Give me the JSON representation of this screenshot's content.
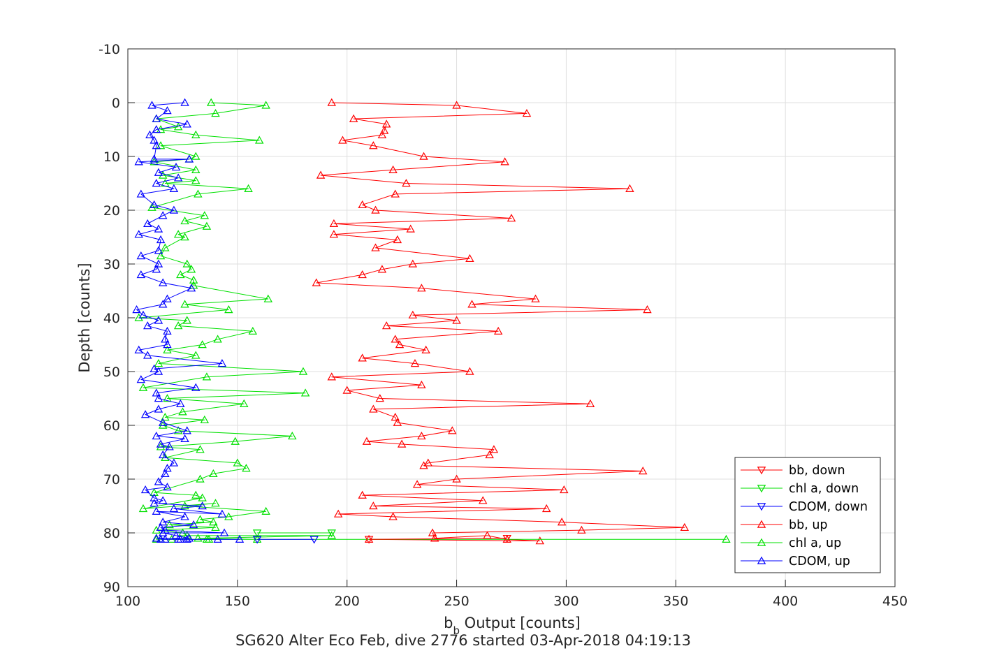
{
  "chart_data": {
    "type": "line",
    "title": "",
    "xlabel_main": "b",
    "xlabel_sub": "b",
    "xlabel_rest": " Output [counts]",
    "ylabel": "Depth [counts]",
    "footer": "SG620 Alter Eco Feb, dive 2776 started 03-Apr-2018 04:19:13",
    "xlim": [
      100,
      450
    ],
    "ylim": [
      -10,
      90
    ],
    "y_reversed": true,
    "grid": true,
    "legend_position": "bottom-right",
    "xticks": [
      "100",
      "150",
      "200",
      "250",
      "300",
      "350",
      "400",
      "450"
    ],
    "yticks": [
      "-10",
      "0",
      "10",
      "20",
      "30",
      "40",
      "50",
      "60",
      "70",
      "80",
      "90"
    ],
    "series": [
      {
        "name": "bb, down",
        "color": "#ff0000",
        "marker": "triangle-down",
        "x": [
          210,
          273
        ],
        "y": [
          81.2,
          81.0
        ]
      },
      {
        "name": "chl a, down",
        "color": "#00e000",
        "marker": "triangle-down",
        "x": [
          193,
          159
        ],
        "y": [
          80.0,
          80.0
        ]
      },
      {
        "name": "CDOM, down",
        "color": "#0000ff",
        "marker": "triangle-down",
        "x": [
          185,
          159
        ],
        "y": [
          81.2,
          81.2
        ]
      },
      {
        "name": "bb, up",
        "color": "#ff0000",
        "marker": "triangle-up",
        "x": [
          193,
          250,
          282,
          203,
          218,
          217,
          216,
          198,
          212,
          235,
          272,
          221,
          188,
          227,
          329,
          222,
          207,
          213,
          275,
          194,
          229,
          194,
          223,
          213,
          256,
          230,
          216,
          207,
          186,
          234,
          286,
          257,
          337,
          230,
          250,
          218,
          269,
          222,
          224,
          236,
          207,
          231,
          256,
          193,
          234,
          200,
          215,
          311,
          212,
          222,
          223,
          248,
          234,
          209,
          225,
          267,
          265,
          237,
          235,
          335,
          250,
          232,
          299,
          207,
          262,
          212,
          291,
          196,
          221,
          298,
          354,
          307,
          239,
          240,
          264,
          273,
          288,
          210
        ],
        "y": [
          0,
          0.5,
          2,
          3,
          4,
          5.2,
          6,
          7,
          8,
          10,
          11,
          12.5,
          13.5,
          15,
          16,
          17,
          19,
          20,
          21.5,
          22.5,
          23.5,
          24.5,
          25.5,
          27,
          29,
          30,
          31,
          32,
          33.5,
          34.5,
          36.5,
          37.5,
          38.5,
          39.5,
          40.5,
          41.5,
          42.5,
          44,
          45,
          46,
          47.5,
          48.5,
          50,
          51,
          52.5,
          53.5,
          55,
          56,
          57,
          58.5,
          59.5,
          61,
          62,
          63,
          63.5,
          64.5,
          65.5,
          67,
          67.5,
          68.5,
          70,
          71,
          72,
          73,
          74,
          75,
          75.5,
          76.5,
          77,
          78,
          79,
          79.5,
          80,
          81,
          80.5,
          81.2,
          81.5,
          81.2
        ]
      },
      {
        "name": "chl a, up",
        "color": "#00e000",
        "marker": "triangle-up",
        "x": [
          138,
          163,
          140,
          113,
          123,
          115,
          131,
          160,
          115,
          131,
          128,
          112,
          131,
          116,
          131,
          117,
          155,
          132,
          111,
          135,
          126,
          136,
          123,
          126,
          117,
          115,
          127,
          129,
          124,
          130,
          130,
          164,
          126,
          146,
          105,
          127,
          123,
          157,
          141,
          134,
          118,
          131,
          114,
          180,
          136,
          107,
          181,
          118,
          153,
          125,
          117,
          135,
          116,
          123,
          175,
          149,
          115,
          133,
          117,
          150,
          154,
          139,
          133,
          112,
          131,
          134,
          107,
          140,
          126,
          163,
          146,
          133,
          139,
          119,
          140,
          113,
          125,
          127,
          193,
          132,
          159,
          113,
          373,
          136,
          137,
          115,
          120
        ],
        "y": [
          0,
          0.5,
          2,
          3,
          4.5,
          5,
          6,
          7,
          8,
          10,
          10.5,
          11,
          12.5,
          13.5,
          14.5,
          15,
          16,
          17,
          19.5,
          21,
          22,
          23,
          24.5,
          25,
          27,
          28.5,
          30,
          31,
          32,
          33,
          34,
          36.5,
          37.5,
          38.5,
          40,
          40.5,
          41.5,
          42.5,
          44,
          45,
          46,
          47,
          48.5,
          50,
          51,
          53,
          54,
          55,
          56,
          57.5,
          58.5,
          59,
          60,
          61,
          62,
          63,
          64,
          64.5,
          66,
          67,
          68,
          69,
          70,
          72.5,
          73,
          73.5,
          75.5,
          74.5,
          75,
          76,
          77,
          77.5,
          78,
          78.5,
          79,
          79.5,
          80,
          80.5,
          80.5,
          81,
          81.2,
          81.2,
          81.2,
          81.2,
          81.2,
          81.2,
          81.2
        ],
        "note_markers_down_at_end": true
      },
      {
        "name": "CDOM, up",
        "color": "#0000ff",
        "marker": "triangle-up",
        "x": [
          126,
          111,
          118,
          113,
          127,
          113,
          110,
          112,
          113,
          112,
          128,
          105,
          122,
          114,
          123,
          113,
          121,
          106,
          112,
          121,
          116,
          109,
          114,
          105,
          115,
          114,
          106,
          114,
          113,
          106,
          116,
          129,
          118,
          116,
          104,
          107,
          114,
          109,
          118,
          117,
          118,
          105,
          109,
          143,
          112,
          114,
          106,
          131,
          113,
          114,
          124,
          114,
          108,
          116,
          127,
          113,
          126,
          115,
          119,
          116,
          121,
          118,
          117,
          114,
          118,
          108,
          112,
          116,
          112,
          134,
          121,
          143,
          113,
          126,
          116,
          130,
          115,
          117,
          144,
          116,
          122,
          128,
          113,
          117,
          124,
          141,
          151,
          127,
          123,
          115
        ],
        "y": [
          0,
          0.5,
          1.5,
          3,
          4,
          5,
          6,
          7,
          8,
          10.5,
          10.5,
          11,
          12,
          13,
          14,
          15,
          16,
          17,
          19,
          20,
          21,
          22.5,
          23.5,
          24.5,
          25.5,
          27.5,
          28.5,
          30,
          31,
          32,
          33.5,
          34.5,
          36.5,
          37.5,
          38.5,
          39.5,
          40.5,
          41.5,
          42.5,
          44,
          45,
          46,
          47,
          48.5,
          49.5,
          50,
          51.5,
          53,
          54,
          55,
          56,
          57,
          58,
          59.5,
          61,
          62,
          62.5,
          63.5,
          64,
          65.5,
          67,
          68,
          69,
          70.5,
          71.5,
          72,
          73.5,
          74,
          74.5,
          75,
          75.5,
          76.5,
          76,
          77,
          78,
          78.5,
          79,
          79.5,
          80,
          80,
          80.5,
          81,
          81,
          81.2,
          81.2,
          81.2,
          81.2,
          81.2,
          81.2,
          81.2
        ]
      }
    ]
  }
}
